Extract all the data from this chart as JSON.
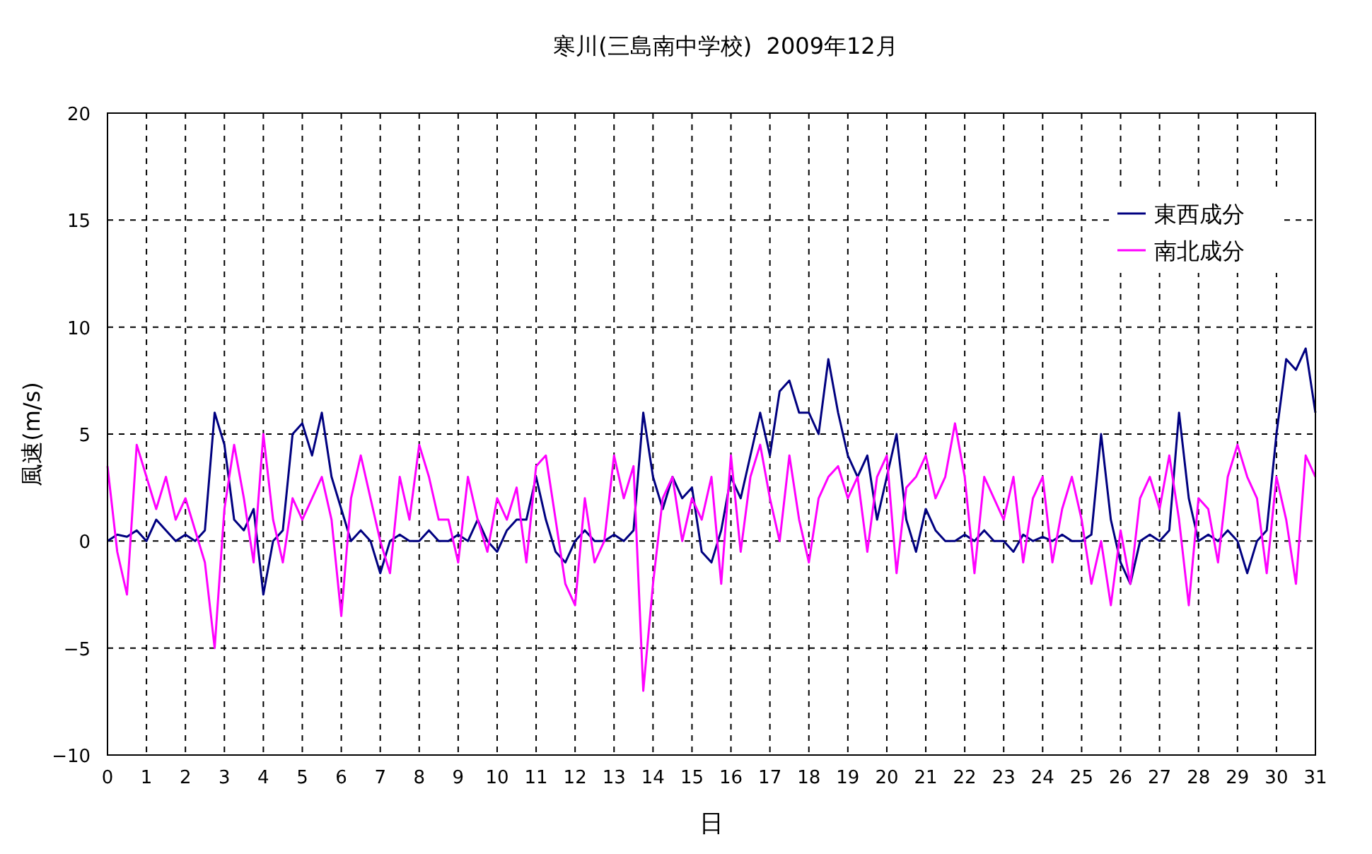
{
  "chart_data": {
    "type": "line",
    "title": "寒川(三島南中学校)  2009年12月",
    "xlabel": "日",
    "ylabel": "風速(m/s)",
    "x": [
      0,
      0.25,
      0.5,
      0.75,
      1,
      1.25,
      1.5,
      1.75,
      2,
      2.25,
      2.5,
      2.75,
      3,
      3.25,
      3.5,
      3.75,
      4,
      4.25,
      4.5,
      4.75,
      5,
      5.25,
      5.5,
      5.75,
      6,
      6.25,
      6.5,
      6.75,
      7,
      7.25,
      7.5,
      7.75,
      8,
      8.25,
      8.5,
      8.75,
      9,
      9.25,
      9.5,
      9.75,
      10,
      10.25,
      10.5,
      10.75,
      11,
      11.25,
      11.5,
      11.75,
      12,
      12.25,
      12.5,
      12.75,
      13,
      13.25,
      13.5,
      13.75,
      14,
      14.25,
      14.5,
      14.75,
      15,
      15.25,
      15.5,
      15.75,
      16,
      16.25,
      16.5,
      16.75,
      17,
      17.25,
      17.5,
      17.75,
      18,
      18.25,
      18.5,
      18.75,
      19,
      19.25,
      19.5,
      19.75,
      20,
      20.25,
      20.5,
      20.75,
      21,
      21.25,
      21.5,
      21.75,
      22,
      22.25,
      22.5,
      22.75,
      23,
      23.25,
      23.5,
      23.75,
      24,
      24.25,
      24.5,
      24.75,
      25,
      25.25,
      25.5,
      25.75,
      26,
      26.25,
      26.5,
      26.75,
      27,
      27.25,
      27.5,
      27.75,
      28,
      28.25,
      28.5,
      28.75,
      29,
      29.25,
      29.5,
      29.75,
      30,
      30.25,
      30.5,
      30.75,
      31
    ],
    "series": [
      {
        "name": "東西成分",
        "color": "#000080",
        "values": [
          0,
          0.3,
          0.2,
          0.5,
          0,
          1,
          0.5,
          0,
          0.3,
          0,
          0.5,
          6,
          4.5,
          1,
          0.5,
          1.5,
          -2.5,
          0,
          0.5,
          5,
          5.5,
          4,
          6,
          3,
          1.5,
          0,
          0.5,
          0,
          -1.5,
          0,
          0.3,
          0,
          0,
          0.5,
          0,
          0,
          0.3,
          0,
          1,
          0,
          -0.5,
          0.5,
          1,
          1,
          3,
          1,
          -0.5,
          -1,
          0,
          0.5,
          0,
          0,
          0.3,
          0,
          0.5,
          6,
          3,
          1.5,
          3,
          2,
          2.5,
          -0.5,
          -1,
          0.5,
          3,
          2,
          4,
          6,
          4,
          7,
          7.5,
          6,
          6,
          5,
          8.5,
          6,
          4,
          3,
          4,
          1,
          3,
          5,
          1,
          -0.5,
          1.5,
          0.5,
          0,
          0,
          0.3,
          0,
          0.5,
          0,
          0,
          -0.5,
          0.3,
          0,
          0.2,
          0,
          0.3,
          0,
          0,
          0.3,
          5,
          1,
          -1,
          -2,
          0,
          0.3,
          0,
          0.5,
          6,
          2,
          0,
          0.3,
          0,
          0.5,
          0,
          -1.5,
          0,
          0.5,
          5,
          8.5,
          8,
          9,
          6
        ]
      },
      {
        "name": "南北成分",
        "color": "#ff00ff",
        "values": [
          3.5,
          -0.5,
          -2.5,
          4.5,
          3,
          1.5,
          3,
          1,
          2,
          0.5,
          -1,
          -5,
          1.5,
          4.5,
          2,
          -1,
          5,
          1,
          -1,
          2,
          1,
          2,
          3,
          1,
          -3.5,
          2,
          4,
          2,
          0,
          -1.5,
          3,
          1,
          4.5,
          3,
          1,
          1,
          -1,
          3,
          1,
          -0.5,
          2,
          1,
          2.5,
          -1,
          3.5,
          4,
          1,
          -2,
          -3,
          2,
          -1,
          0,
          4,
          2,
          3.5,
          -7,
          -2,
          2,
          3,
          0,
          2,
          1,
          3,
          -2,
          4,
          -0.5,
          3,
          4.5,
          2,
          0,
          4,
          1,
          -1,
          2,
          3,
          3.5,
          2,
          3,
          -0.5,
          3,
          4,
          -1.5,
          2.5,
          3,
          4,
          2,
          3,
          5.5,
          3,
          -1.5,
          3,
          2,
          1,
          3,
          -1,
          2,
          3,
          -1,
          1.5,
          3,
          1,
          -2,
          0,
          -3,
          0.5,
          -2,
          2,
          3,
          1.5,
          4,
          1,
          -3,
          2,
          1.5,
          -1,
          3,
          4.5,
          3,
          2,
          -1.5,
          3,
          1,
          -2,
          4,
          3
        ]
      }
    ],
    "xlim": [
      0,
      31
    ],
    "xticks": [
      0,
      1,
      2,
      3,
      4,
      5,
      6,
      7,
      8,
      9,
      10,
      11,
      12,
      13,
      14,
      15,
      16,
      17,
      18,
      19,
      20,
      21,
      22,
      23,
      24,
      25,
      26,
      27,
      28,
      29,
      30,
      31
    ],
    "ylim": [
      -10,
      20
    ],
    "yticks": [
      -10,
      -5,
      0,
      5,
      10,
      15,
      20
    ],
    "grid": true,
    "legend": "top right",
    "marker": "none",
    "line_style": "solid"
  }
}
